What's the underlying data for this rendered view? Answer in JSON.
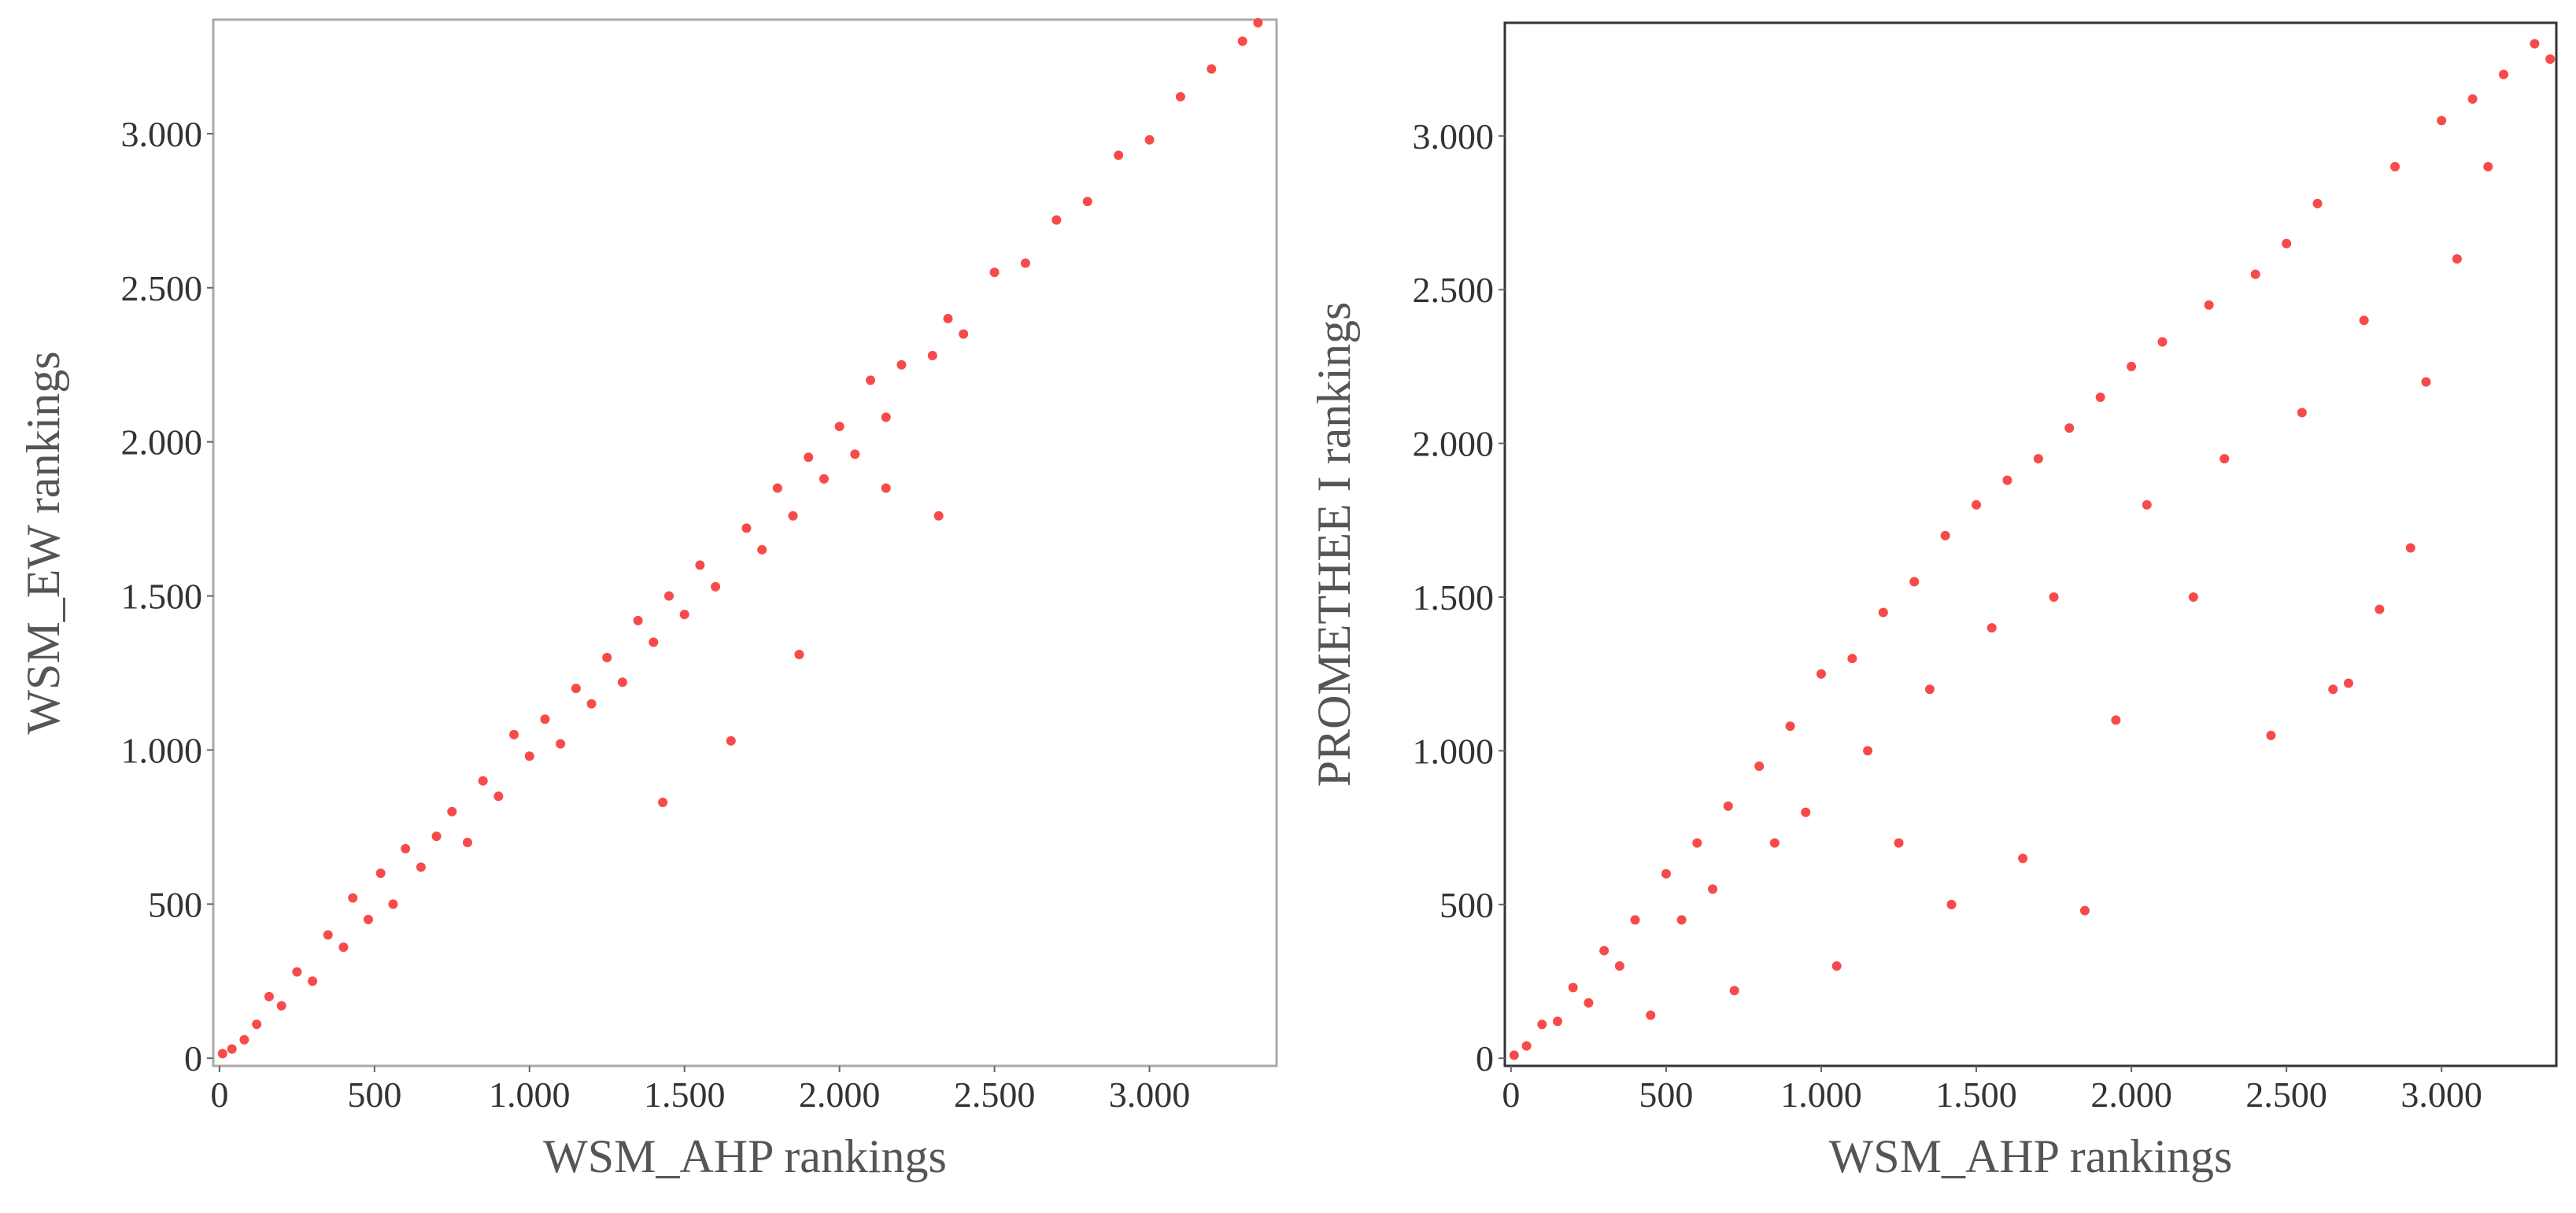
{
  "chart_data": [
    {
      "type": "scatter",
      "x_label": "WSM_AHP rankings",
      "y_label": "WSM_EW rankings",
      "color": "#f74a4a",
      "xlim": [
        -20,
        3410
      ],
      "ylim": [
        -25,
        3370
      ],
      "xticks": [
        0,
        500,
        {
          "value": 1000,
          "label": "1.000"
        },
        {
          "value": 1500,
          "label": "1.500"
        },
        {
          "value": 2000,
          "label": "2.000"
        },
        {
          "value": 2500,
          "label": "2.500"
        },
        {
          "value": 3000,
          "label": "3.000"
        }
      ],
      "yticks": [
        0,
        500,
        {
          "value": 1000,
          "label": "1.000"
        },
        {
          "value": 1500,
          "label": "1.500"
        },
        {
          "value": 2000,
          "label": "2.000"
        },
        {
          "value": 2500,
          "label": "2.500"
        },
        {
          "value": 3000,
          "label": "3.000"
        }
      ],
      "x": [
        10,
        40,
        80,
        120,
        160,
        200,
        250,
        300,
        350,
        400,
        430,
        480,
        520,
        560,
        600,
        650,
        700,
        750,
        800,
        850,
        900,
        950,
        1000,
        1050,
        1100,
        1150,
        1200,
        1250,
        1300,
        1350,
        1400,
        1430,
        1450,
        1500,
        1550,
        1600,
        1650,
        1700,
        1750,
        1800,
        1850,
        1870,
        1900,
        1950,
        2000,
        2050,
        2100,
        2150,
        2150,
        2200,
        2300,
        2320,
        2350,
        2400,
        2500,
        2600,
        2700,
        2800,
        2900,
        3000,
        3100,
        3200,
        3300,
        3350
      ],
      "values": [
        15,
        30,
        60,
        110,
        200,
        170,
        280,
        250,
        400,
        360,
        520,
        450,
        600,
        500,
        680,
        620,
        720,
        800,
        700,
        900,
        850,
        1050,
        980,
        1100,
        1020,
        1200,
        1150,
        1300,
        1220,
        1420,
        1350,
        830,
        1500,
        1440,
        1600,
        1530,
        1030,
        1720,
        1650,
        1850,
        1760,
        1310,
        1950,
        1880,
        2050,
        1960,
        2200,
        2080,
        1850,
        2250,
        2280,
        1760,
        2400,
        2350,
        2550,
        2580,
        2720,
        2780,
        2930,
        2980,
        3120,
        3210,
        3300,
        3360
      ]
    },
    {
      "type": "scatter",
      "x_label": "WSM_AHP rankings",
      "y_label": "PROMETHEE I rankings",
      "color": "#f74a4a",
      "xlim": [
        -20,
        3370
      ],
      "ylim": [
        -25,
        3368
      ],
      "xticks": [
        0,
        500,
        {
          "value": 1000,
          "label": "1.000"
        },
        {
          "value": 1500,
          "label": "1.500"
        },
        {
          "value": 2000,
          "label": "2.000"
        },
        {
          "value": 2500,
          "label": "2.500"
        },
        {
          "value": 3000,
          "label": "3.000"
        }
      ],
      "yticks": [
        0,
        500,
        {
          "value": 1000,
          "label": "1.000"
        },
        {
          "value": 1500,
          "label": "1.500"
        },
        {
          "value": 2000,
          "label": "2.000"
        },
        {
          "value": 2500,
          "label": "2.500"
        },
        {
          "value": 3000,
          "label": "3.000"
        }
      ],
      "x": [
        10,
        50,
        100,
        150,
        200,
        250,
        300,
        350,
        400,
        450,
        500,
        550,
        600,
        650,
        700,
        720,
        800,
        850,
        900,
        950,
        1000,
        1050,
        1100,
        1150,
        1200,
        1250,
        1300,
        1350,
        1400,
        1420,
        1500,
        1550,
        1600,
        1650,
        1700,
        1750,
        1800,
        1850,
        1900,
        1950,
        2000,
        2050,
        2100,
        2200,
        2250,
        2300,
        2400,
        2450,
        2500,
        2550,
        2600,
        2650,
        2700,
        2750,
        2800,
        2850,
        2900,
        2950,
        3000,
        3050,
        3100,
        3150,
        3200,
        3300,
        3350
      ],
      "values": [
        10,
        40,
        110,
        120,
        230,
        180,
        350,
        300,
        450,
        140,
        600,
        450,
        700,
        550,
        820,
        220,
        950,
        700,
        1080,
        800,
        1250,
        300,
        1300,
        1000,
        1450,
        700,
        1550,
        1200,
        1700,
        500,
        1800,
        1400,
        1880,
        650,
        1950,
        1500,
        2050,
        480,
        2150,
        1100,
        2250,
        1800,
        2330,
        1500,
        2450,
        1950,
        2550,
        1050,
        2650,
        2100,
        2780,
        1200,
        1220,
        2400,
        1460,
        2900,
        1660,
        2200,
        3050,
        2600,
        3120,
        2900,
        3200,
        3300,
        3250
      ]
    }
  ]
}
